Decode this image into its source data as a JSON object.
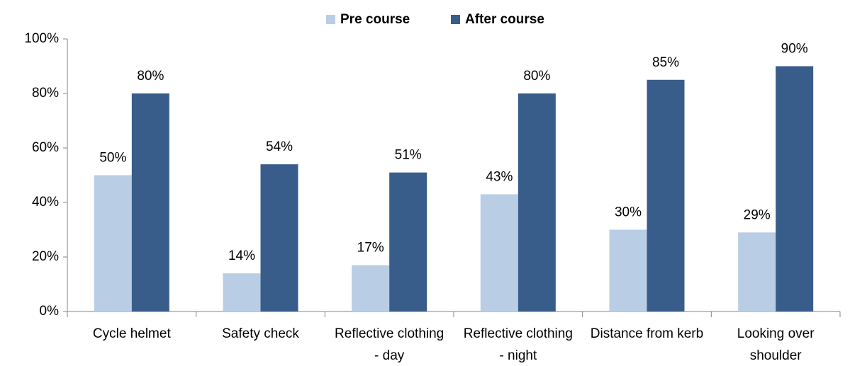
{
  "chart_data": {
    "type": "bar",
    "categories": [
      "Cycle helmet",
      "Safety check",
      "Reflective clothing - day",
      "Reflective clothing - night",
      "Distance from kerb",
      "Looking over shoulder"
    ],
    "series": [
      {
        "name": "Pre course",
        "color": "#b9cde5",
        "values": [
          50,
          14,
          17,
          43,
          30,
          29
        ],
        "value_labels": [
          "50%",
          "14%",
          "17%",
          "43%",
          "30%",
          "29%"
        ]
      },
      {
        "name": "After course",
        "color": "#385d8a",
        "values": [
          80,
          54,
          51,
          80,
          85,
          90
        ],
        "value_labels": [
          "80%",
          "54%",
          "51%",
          "80%",
          "85%",
          "90%"
        ]
      }
    ],
    "ylim": [
      0,
      100
    ],
    "yticks": [
      {
        "value": 0,
        "label": "0%"
      },
      {
        "value": 20,
        "label": "20%"
      },
      {
        "value": 40,
        "label": "40%"
      },
      {
        "value": 60,
        "label": "60%"
      },
      {
        "value": 80,
        "label": "80%"
      },
      {
        "value": 100,
        "label": "100%"
      }
    ],
    "grid": false,
    "legend": "top"
  }
}
